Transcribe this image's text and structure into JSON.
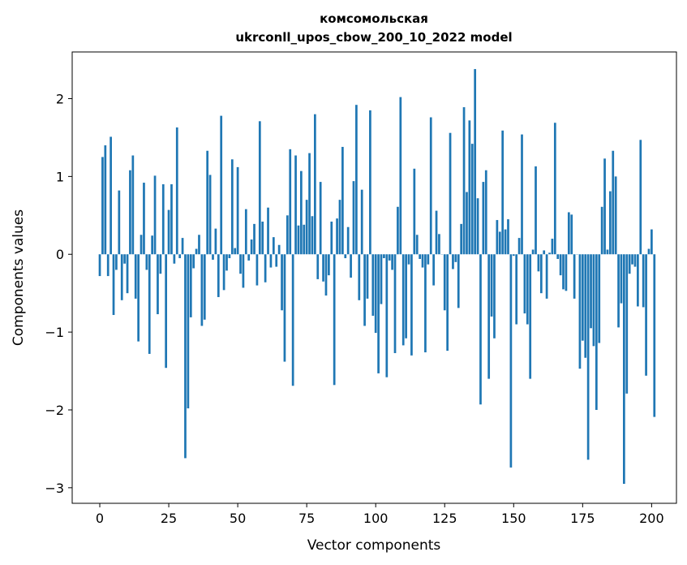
{
  "chart_data": {
    "type": "bar",
    "title_line1": "комсомольская",
    "title_line2": "ukrconll_upos_cbow_200_10_2022 model",
    "xlabel": "Vector components",
    "ylabel": "Components values",
    "xlim": [
      -10,
      209
    ],
    "ylim": [
      -3.2,
      2.6
    ],
    "xticks": [
      0,
      25,
      50,
      75,
      100,
      125,
      150,
      175,
      200
    ],
    "yticks": [
      -3,
      -2,
      -1,
      0,
      1,
      2
    ],
    "ytick_labels": [
      "−3",
      "−2",
      "−1",
      "0",
      "1",
      "2"
    ],
    "bar_color": "#1f77b4",
    "grid": false,
    "values": [
      -0.28,
      1.25,
      1.4,
      -0.28,
      1.51,
      -0.78,
      -0.2,
      0.82,
      -0.59,
      -0.12,
      -0.5,
      1.08,
      1.27,
      -0.57,
      -1.12,
      0.25,
      0.92,
      -0.2,
      -1.28,
      0.24,
      1.01,
      -0.77,
      -0.25,
      0.9,
      -1.46,
      0.57,
      0.9,
      -0.12,
      1.63,
      -0.05,
      0.21,
      -2.62,
      -1.98,
      -0.81,
      -0.18,
      0.07,
      0.25,
      -0.92,
      -0.84,
      1.33,
      1.02,
      -0.07,
      0.33,
      -0.55,
      1.78,
      -0.46,
      -0.21,
      -0.05,
      1.22,
      0.08,
      1.12,
      -0.25,
      -0.43,
      0.58,
      -0.08,
      0.19,
      0.39,
      -0.4,
      1.71,
      0.42,
      -0.36,
      0.6,
      -0.17,
      0.22,
      -0.16,
      0.12,
      -0.72,
      -1.38,
      0.5,
      1.35,
      -1.69,
      1.27,
      0.37,
      1.07,
      0.38,
      0.7,
      1.3,
      0.49,
      1.8,
      -0.32,
      0.93,
      -0.35,
      -0.53,
      -0.27,
      0.42,
      -1.68,
      0.46,
      0.7,
      1.38,
      -0.05,
      0.35,
      -0.3,
      0.94,
      1.92,
      -0.59,
      0.83,
      -0.92,
      -0.57,
      1.85,
      -0.79,
      -1.01,
      -1.53,
      -0.64,
      -0.05,
      -1.58,
      -0.08,
      -0.2,
      -1.27,
      0.61,
      2.02,
      -1.17,
      -1.08,
      -0.13,
      -1.3,
      1.1,
      0.25,
      -0.06,
      -0.17,
      -1.26,
      -0.13,
      1.76,
      -0.4,
      0.56,
      0.26,
      0.0,
      -0.72,
      -1.24,
      1.56,
      -0.19,
      -0.1,
      -0.69,
      0.39,
      1.89,
      0.8,
      1.72,
      1.42,
      2.38,
      0.72,
      -1.93,
      0.93,
      1.08,
      -1.6,
      -0.8,
      -1.08,
      0.44,
      0.29,
      1.59,
      0.32,
      0.45,
      -2.74,
      -0.02,
      -0.9,
      0.21,
      1.54,
      -0.76,
      -0.9,
      -1.6,
      0.06,
      1.13,
      -0.22,
      -0.5,
      0.05,
      -0.57,
      0.02,
      0.2,
      1.69,
      -0.06,
      -0.27,
      -0.45,
      -0.47,
      0.54,
      0.51,
      -0.57,
      0.0,
      -1.47,
      -1.11,
      -1.33,
      -2.64,
      -0.95,
      -1.18,
      -2.0,
      -1.14,
      0.61,
      1.23,
      0.06,
      0.81,
      1.33,
      1.0,
      -0.94,
      -0.63,
      -2.95,
      -1.79,
      -0.25,
      -0.13,
      -0.16,
      -0.67,
      1.47,
      -0.68,
      -1.56,
      0.07,
      0.32,
      -2.09
    ]
  }
}
